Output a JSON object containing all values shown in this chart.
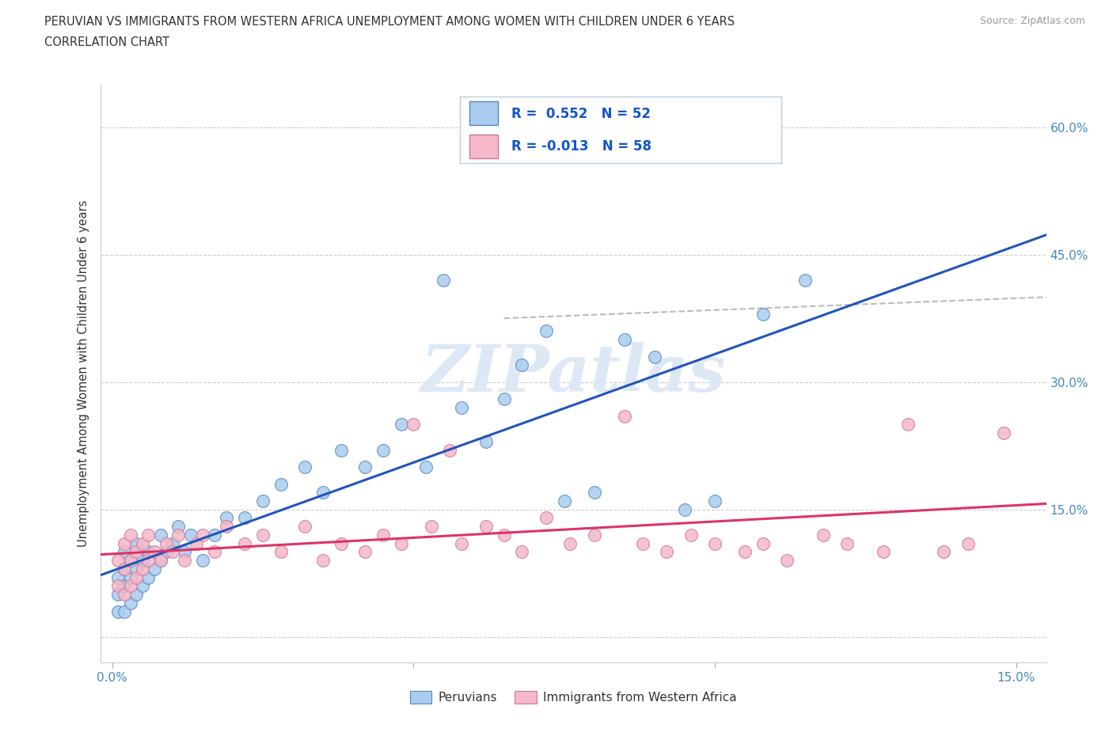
{
  "title_line1": "PERUVIAN VS IMMIGRANTS FROM WESTERN AFRICA UNEMPLOYMENT AMONG WOMEN WITH CHILDREN UNDER 6 YEARS",
  "title_line2": "CORRELATION CHART",
  "source": "Source: ZipAtlas.com",
  "ylabel": "Unemployment Among Women with Children Under 6 years",
  "xlim": [
    -0.002,
    0.155
  ],
  "ylim": [
    -0.03,
    0.65
  ],
  "xtick_positions": [
    0.0,
    0.05,
    0.1,
    0.15
  ],
  "xtick_labels": [
    "0.0%",
    "",
    "",
    "15.0%"
  ],
  "ytick_positions": [
    0.0,
    0.15,
    0.3,
    0.45,
    0.6
  ],
  "ytick_labels": [
    "",
    "15.0%",
    "30.0%",
    "45.0%",
    "60.0%"
  ],
  "background_color": "#ffffff",
  "grid_color": "#cccccc",
  "peruvian_color": "#aaccee",
  "peruvian_edge_color": "#5588bb",
  "immigrant_color": "#f4b8c8",
  "immigrant_edge_color": "#cc7799",
  "peruvian_line_color": "#2255bb",
  "immigrant_line_color": "#dd3366",
  "peruvian_R": 0.552,
  "peruvian_N": 52,
  "immigrant_R": -0.013,
  "immigrant_N": 58,
  "tick_color": "#4488bb",
  "text_color": "#333333",
  "legend_text_color": "#1155cc",
  "watermark_color": "#dde8f5",
  "source_color": "#999999",
  "legend_border_color": "#bbccdd",
  "dashed_line_color": "#bbbbbb",
  "peruvians_x": [
    0.001,
    0.001,
    0.001,
    0.002,
    0.002,
    0.002,
    0.002,
    0.003,
    0.003,
    0.003,
    0.004,
    0.004,
    0.004,
    0.005,
    0.005,
    0.006,
    0.006,
    0.007,
    0.008,
    0.008,
    0.009,
    0.01,
    0.011,
    0.012,
    0.013,
    0.015,
    0.017,
    0.019,
    0.022,
    0.025,
    0.028,
    0.032,
    0.035,
    0.038,
    0.042,
    0.045,
    0.048,
    0.052,
    0.055,
    0.058,
    0.062,
    0.065,
    0.068,
    0.072,
    0.075,
    0.08,
    0.085,
    0.09,
    0.095,
    0.1,
    0.108,
    0.115
  ],
  "peruvians_y": [
    0.03,
    0.05,
    0.07,
    0.03,
    0.06,
    0.08,
    0.1,
    0.04,
    0.07,
    0.09,
    0.05,
    0.08,
    0.11,
    0.06,
    0.09,
    0.07,
    0.1,
    0.08,
    0.09,
    0.12,
    0.1,
    0.11,
    0.13,
    0.1,
    0.12,
    0.09,
    0.12,
    0.14,
    0.14,
    0.16,
    0.18,
    0.2,
    0.17,
    0.22,
    0.2,
    0.22,
    0.25,
    0.2,
    0.42,
    0.27,
    0.23,
    0.28,
    0.32,
    0.36,
    0.16,
    0.17,
    0.35,
    0.33,
    0.15,
    0.16,
    0.38,
    0.42
  ],
  "immigrants_x": [
    0.001,
    0.001,
    0.002,
    0.002,
    0.002,
    0.003,
    0.003,
    0.003,
    0.004,
    0.004,
    0.005,
    0.005,
    0.006,
    0.006,
    0.007,
    0.008,
    0.009,
    0.01,
    0.011,
    0.012,
    0.014,
    0.015,
    0.017,
    0.019,
    0.022,
    0.025,
    0.028,
    0.032,
    0.035,
    0.038,
    0.042,
    0.045,
    0.048,
    0.05,
    0.053,
    0.056,
    0.058,
    0.062,
    0.065,
    0.068,
    0.072,
    0.076,
    0.08,
    0.085,
    0.088,
    0.092,
    0.096,
    0.1,
    0.105,
    0.108,
    0.112,
    0.118,
    0.122,
    0.128,
    0.132,
    0.138,
    0.142,
    0.148
  ],
  "immigrants_y": [
    0.06,
    0.09,
    0.05,
    0.08,
    0.11,
    0.06,
    0.09,
    0.12,
    0.07,
    0.1,
    0.08,
    0.11,
    0.09,
    0.12,
    0.1,
    0.09,
    0.11,
    0.1,
    0.12,
    0.09,
    0.11,
    0.12,
    0.1,
    0.13,
    0.11,
    0.12,
    0.1,
    0.13,
    0.09,
    0.11,
    0.1,
    0.12,
    0.11,
    0.25,
    0.13,
    0.22,
    0.11,
    0.13,
    0.12,
    0.1,
    0.14,
    0.11,
    0.12,
    0.26,
    0.11,
    0.1,
    0.12,
    0.11,
    0.1,
    0.11,
    0.09,
    0.12,
    0.11,
    0.1,
    0.25,
    0.1,
    0.11,
    0.24
  ]
}
